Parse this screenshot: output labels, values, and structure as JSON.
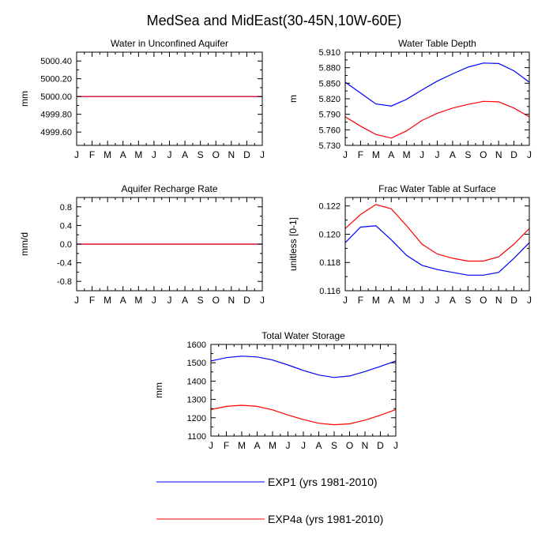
{
  "figure": {
    "title": "MedSea and MidEast(30-45N,10W-60E)"
  },
  "legend": {
    "items": [
      {
        "label": "EXP1 (yrs 1981-2010)",
        "color": "#0000ff"
      },
      {
        "label": "EXP4a (yrs 1981-2010)",
        "color": "#ff0000"
      }
    ]
  },
  "chart_data": [
    {
      "type": "line",
      "title": "Water in Unconfined Aquifer",
      "xlabel": "",
      "ylabel": "mm",
      "categories": [
        "J",
        "F",
        "M",
        "A",
        "M",
        "J",
        "J",
        "A",
        "S",
        "O",
        "N",
        "D",
        "J"
      ],
      "ylim": [
        4999.45,
        5000.5
      ],
      "yticks": [
        4999.6,
        4999.8,
        5000.0,
        5000.2,
        5000.4
      ],
      "yticklabels": [
        "4999.60",
        "4999.80",
        "5000.00",
        "5000.20",
        "5000.40"
      ],
      "series": [
        {
          "name": "EXP1",
          "color": "#0000ff",
          "values": [
            5000.0,
            5000.0,
            5000.0,
            5000.0,
            5000.0,
            5000.0,
            5000.0,
            5000.0,
            5000.0,
            5000.0,
            5000.0,
            5000.0,
            5000.0
          ]
        },
        {
          "name": "EXP4a",
          "color": "#ff0000",
          "values": [
            5000.0,
            5000.0,
            5000.0,
            5000.0,
            5000.0,
            5000.0,
            5000.0,
            5000.0,
            5000.0,
            5000.0,
            5000.0,
            5000.0,
            5000.0
          ]
        }
      ]
    },
    {
      "type": "line",
      "title": "Water Table Depth",
      "xlabel": "",
      "ylabel": "m",
      "categories": [
        "J",
        "F",
        "M",
        "A",
        "M",
        "J",
        "J",
        "A",
        "S",
        "O",
        "N",
        "D",
        "J"
      ],
      "ylim": [
        5.73,
        5.91
      ],
      "yticks": [
        5.73,
        5.76,
        5.79,
        5.82,
        5.85,
        5.88,
        5.91
      ],
      "yticklabels": [
        "5.730",
        "5.760",
        "5.790",
        "5.820",
        "5.850",
        "5.880",
        "5.910"
      ],
      "series": [
        {
          "name": "EXP1",
          "color": "#0000ff",
          "values": [
            5.852,
            5.831,
            5.81,
            5.806,
            5.819,
            5.837,
            5.854,
            5.868,
            5.881,
            5.889,
            5.888,
            5.874,
            5.852
          ]
        },
        {
          "name": "EXP4a",
          "color": "#ff0000",
          "values": [
            5.785,
            5.767,
            5.751,
            5.744,
            5.758,
            5.778,
            5.792,
            5.802,
            5.809,
            5.815,
            5.814,
            5.802,
            5.785
          ]
        }
      ]
    },
    {
      "type": "line",
      "title": "Aquifer Recharge Rate",
      "xlabel": "",
      "ylabel": "mm/d",
      "categories": [
        "J",
        "F",
        "M",
        "A",
        "M",
        "J",
        "J",
        "A",
        "S",
        "O",
        "N",
        "D",
        "J"
      ],
      "ylim": [
        -1.0,
        1.0
      ],
      "yticks": [
        -0.8,
        -0.4,
        0.0,
        0.4,
        0.8
      ],
      "yticklabels": [
        "-0.8",
        "-0.4",
        "0.0",
        "0.4",
        "0.8"
      ],
      "series": [
        {
          "name": "EXP1",
          "color": "#0000ff",
          "values": [
            0,
            0,
            0,
            0,
            0,
            0,
            0,
            0,
            0,
            0,
            0,
            0,
            0
          ]
        },
        {
          "name": "EXP4a",
          "color": "#ff0000",
          "values": [
            0,
            0,
            0,
            0,
            0,
            0,
            0,
            0,
            0,
            0,
            0,
            0,
            0
          ]
        }
      ]
    },
    {
      "type": "line",
      "title": "Frac Water Table at Surface",
      "xlabel": "",
      "ylabel": "unitless [0-1]",
      "categories": [
        "J",
        "F",
        "M",
        "A",
        "M",
        "J",
        "J",
        "A",
        "S",
        "O",
        "N",
        "D",
        "J"
      ],
      "ylim": [
        0.116,
        0.1226
      ],
      "yticks": [
        0.116,
        0.118,
        0.12,
        0.122
      ],
      "yticklabels": [
        "0.116",
        "0.118",
        "0.120",
        "0.122"
      ],
      "series": [
        {
          "name": "EXP1",
          "color": "#0000ff",
          "values": [
            0.1194,
            0.1205,
            0.1206,
            0.1196,
            0.1185,
            0.1178,
            0.1175,
            0.1173,
            0.1171,
            0.1171,
            0.1173,
            0.1183,
            0.1194
          ]
        },
        {
          "name": "EXP4a",
          "color": "#ff0000",
          "values": [
            0.1204,
            0.1214,
            0.1221,
            0.1218,
            0.1206,
            0.1193,
            0.1186,
            0.1183,
            0.1181,
            0.1181,
            0.1184,
            0.1193,
            0.1204
          ]
        }
      ]
    },
    {
      "type": "line",
      "title": "Total Water Storage",
      "xlabel": "",
      "ylabel": "mm",
      "categories": [
        "J",
        "F",
        "M",
        "A",
        "M",
        "J",
        "J",
        "A",
        "S",
        "O",
        "N",
        "D",
        "J"
      ],
      "ylim": [
        1100,
        1600
      ],
      "yticks": [
        1100,
        1200,
        1300,
        1400,
        1500,
        1600
      ],
      "yticklabels": [
        "1100",
        "1200",
        "1300",
        "1400",
        "1500",
        "1600"
      ],
      "series": [
        {
          "name": "EXP1",
          "color": "#0000ff",
          "values": [
            1510,
            1528,
            1536,
            1532,
            1515,
            1488,
            1458,
            1433,
            1420,
            1428,
            1452,
            1480,
            1510
          ]
        },
        {
          "name": "EXP4a",
          "color": "#ff0000",
          "values": [
            1245,
            1262,
            1268,
            1262,
            1243,
            1215,
            1190,
            1170,
            1162,
            1167,
            1187,
            1214,
            1245
          ]
        }
      ]
    }
  ]
}
